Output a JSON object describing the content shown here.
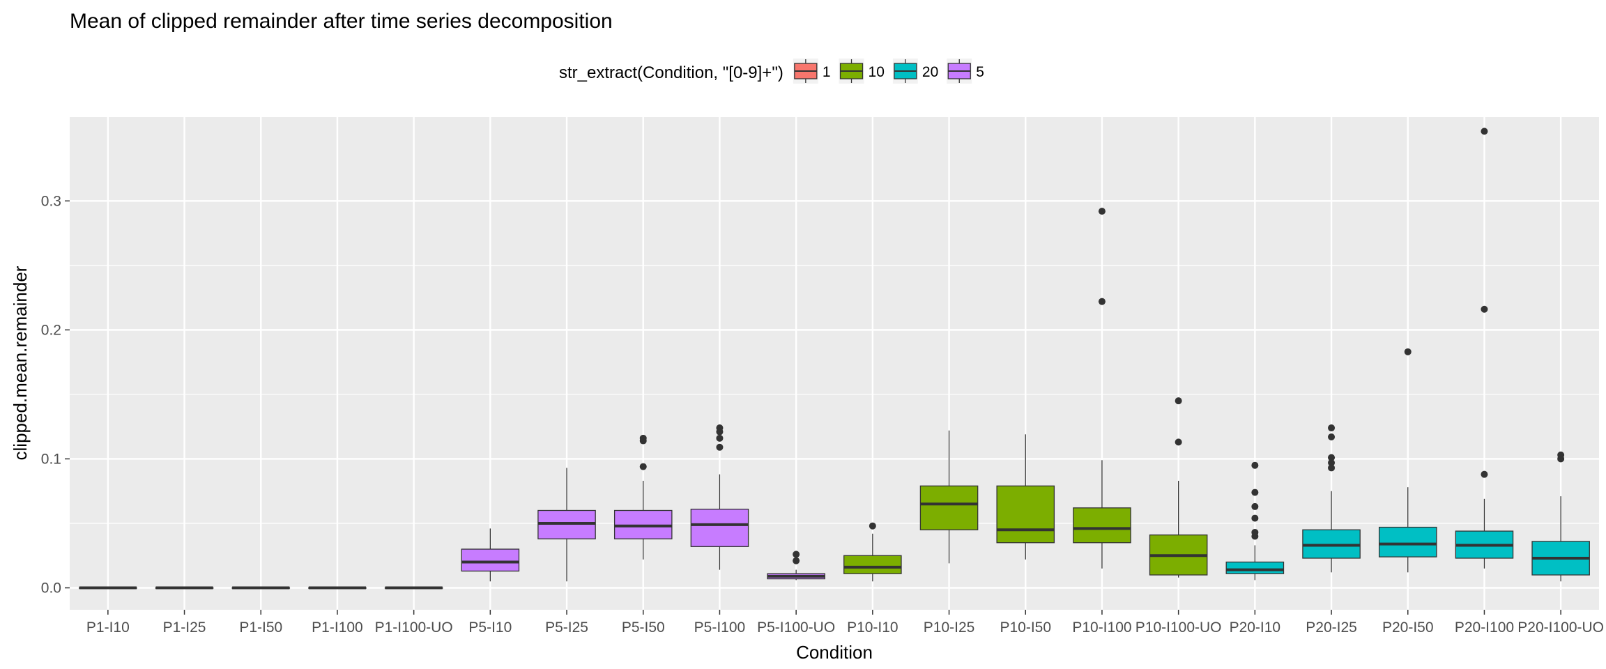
{
  "chart_data": {
    "type": "boxplot",
    "title": "Mean of clipped remainder after time series decomposition",
    "xlabel": "Condition",
    "ylabel": "clipped.mean.remainder",
    "ylim": [
      -0.017,
      0.365
    ],
    "y_ticks": [
      0.0,
      0.1,
      0.2,
      0.3
    ],
    "y_tick_labels": [
      "0.0",
      "0.1",
      "0.2",
      "0.3"
    ],
    "grid": true,
    "legend": {
      "title": "str_extract(Condition, \"[0-9]+\")",
      "position": "top",
      "entries": [
        {
          "label": "1",
          "color": "#F8766D"
        },
        {
          "label": "10",
          "color": "#7CAE00"
        },
        {
          "label": "20",
          "color": "#00BFC4"
        },
        {
          "label": "5",
          "color": "#C77CFF"
        }
      ]
    },
    "colors": {
      "1": "#F8766D",
      "10": "#7CAE00",
      "20": "#00BFC4",
      "5": "#C77CFF"
    },
    "categories": [
      "P1-I10",
      "P1-I25",
      "P1-I50",
      "P1-I100",
      "P1-I100-UO",
      "P5-I10",
      "P5-I25",
      "P5-I50",
      "P5-I100",
      "P5-I100-UO",
      "P10-I10",
      "P10-I25",
      "P10-I50",
      "P10-I100",
      "P10-I100-UO",
      "P20-I10",
      "P20-I25",
      "P20-I50",
      "P20-I100",
      "P20-I100-UO"
    ],
    "boxes": [
      {
        "category": "P1-I10",
        "group": "1",
        "min": 0.0,
        "q1": 0.0,
        "median": 0.0,
        "q3": 0.0,
        "max": 0.0,
        "outliers": []
      },
      {
        "category": "P1-I25",
        "group": "1",
        "min": 0.0,
        "q1": 0.0,
        "median": 0.0,
        "q3": 0.0,
        "max": 0.0,
        "outliers": []
      },
      {
        "category": "P1-I50",
        "group": "1",
        "min": 0.0,
        "q1": 0.0,
        "median": 0.0,
        "q3": 0.0,
        "max": 0.0,
        "outliers": []
      },
      {
        "category": "P1-I100",
        "group": "1",
        "min": 0.0,
        "q1": 0.0,
        "median": 0.0,
        "q3": 0.0,
        "max": 0.0,
        "outliers": []
      },
      {
        "category": "P1-I100-UO",
        "group": "1",
        "min": 0.0,
        "q1": 0.0,
        "median": 0.0,
        "q3": 0.0,
        "max": 0.0,
        "outliers": []
      },
      {
        "category": "P5-I10",
        "group": "5",
        "min": 0.005,
        "q1": 0.013,
        "median": 0.02,
        "q3": 0.03,
        "max": 0.046,
        "outliers": []
      },
      {
        "category": "P5-I25",
        "group": "5",
        "min": 0.005,
        "q1": 0.038,
        "median": 0.05,
        "q3": 0.06,
        "max": 0.093,
        "outliers": []
      },
      {
        "category": "P5-I50",
        "group": "5",
        "min": 0.022,
        "q1": 0.038,
        "median": 0.048,
        "q3": 0.06,
        "max": 0.083,
        "outliers": [
          0.094,
          0.114,
          0.116
        ]
      },
      {
        "category": "P5-I100",
        "group": "5",
        "min": 0.014,
        "q1": 0.032,
        "median": 0.049,
        "q3": 0.061,
        "max": 0.088,
        "outliers": [
          0.109,
          0.116,
          0.121,
          0.124
        ]
      },
      {
        "category": "P5-I100-UO",
        "group": "5",
        "min": 0.006,
        "q1": 0.007,
        "median": 0.009,
        "q3": 0.011,
        "max": 0.014,
        "outliers": [
          0.021,
          0.026
        ]
      },
      {
        "category": "P10-I10",
        "group": "10",
        "min": 0.005,
        "q1": 0.011,
        "median": 0.016,
        "q3": 0.025,
        "max": 0.042,
        "outliers": [
          0.048
        ]
      },
      {
        "category": "P10-I25",
        "group": "10",
        "min": 0.019,
        "q1": 0.045,
        "median": 0.065,
        "q3": 0.079,
        "max": 0.122,
        "outliers": []
      },
      {
        "category": "P10-I50",
        "group": "10",
        "min": 0.022,
        "q1": 0.035,
        "median": 0.045,
        "q3": 0.079,
        "max": 0.119,
        "outliers": []
      },
      {
        "category": "P10-I100",
        "group": "10",
        "min": 0.015,
        "q1": 0.035,
        "median": 0.046,
        "q3": 0.062,
        "max": 0.099,
        "outliers": [
          0.222,
          0.292
        ]
      },
      {
        "category": "P10-I100-UO",
        "group": "10",
        "min": 0.008,
        "q1": 0.01,
        "median": 0.025,
        "q3": 0.041,
        "max": 0.083,
        "outliers": [
          0.113,
          0.145
        ]
      },
      {
        "category": "P20-I10",
        "group": "20",
        "min": 0.006,
        "q1": 0.011,
        "median": 0.014,
        "q3": 0.02,
        "max": 0.033,
        "outliers": [
          0.04,
          0.043,
          0.054,
          0.063,
          0.074,
          0.095
        ]
      },
      {
        "category": "P20-I25",
        "group": "20",
        "min": 0.012,
        "q1": 0.023,
        "median": 0.033,
        "q3": 0.045,
        "max": 0.075,
        "outliers": [
          0.093,
          0.097,
          0.101,
          0.117,
          0.124
        ]
      },
      {
        "category": "P20-I50",
        "group": "20",
        "min": 0.012,
        "q1": 0.024,
        "median": 0.034,
        "q3": 0.047,
        "max": 0.078,
        "outliers": [
          0.183
        ]
      },
      {
        "category": "P20-I100",
        "group": "20",
        "min": 0.015,
        "q1": 0.023,
        "median": 0.033,
        "q3": 0.044,
        "max": 0.069,
        "outliers": [
          0.088,
          0.216,
          0.354
        ]
      },
      {
        "category": "P20-I100-UO",
        "group": "20",
        "min": 0.005,
        "q1": 0.01,
        "median": 0.023,
        "q3": 0.036,
        "max": 0.071,
        "outliers": [
          0.1,
          0.103
        ]
      }
    ]
  }
}
